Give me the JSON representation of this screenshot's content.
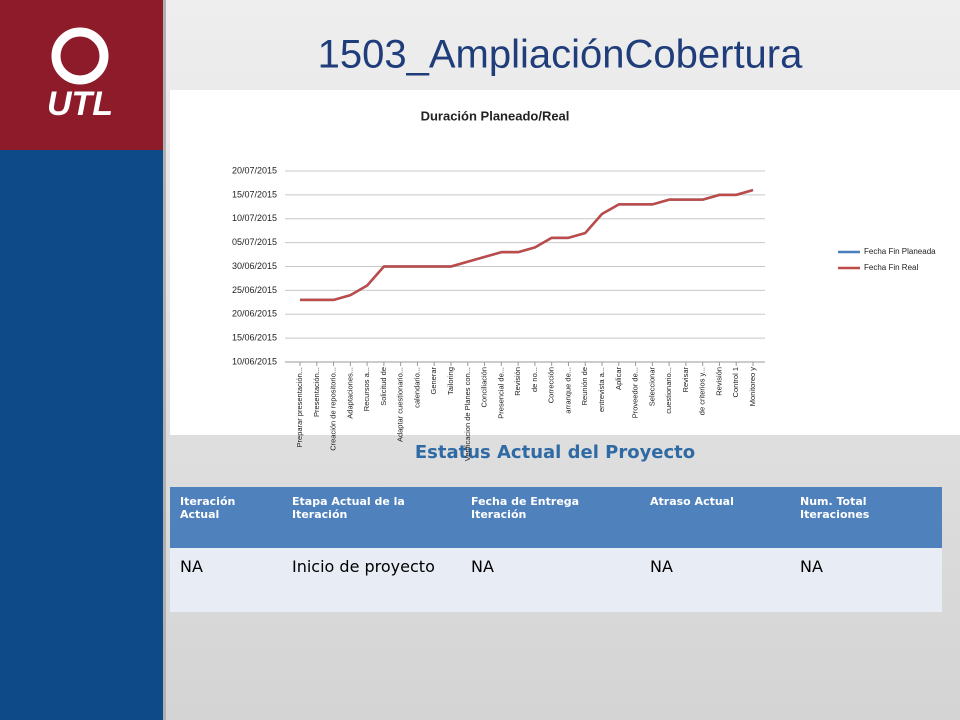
{
  "title": "1503_AmpliaciónCobertura",
  "logo_text": "UTL",
  "chart_data": {
    "type": "line",
    "title": "Duración Planeado/Real",
    "categories": [
      "Preparar presentación...",
      "Presentación...",
      "Creación de repositorio...",
      "Adaptaciones...",
      "Recursos a...",
      "Solicitud de",
      "Adaptar cuestionario...",
      "calendario...",
      "Generar",
      "Tailoring",
      "Verificacion de Planes con...",
      "Conciliación",
      "Presencial de...",
      "Revisión",
      "de no...",
      "Corrección",
      "arranque de...",
      "Reunión de",
      "entrevista a...",
      "Aplicar",
      "Proveedor de...",
      "Seleccionar",
      "cuestionario...",
      "Revisar",
      "de criterios y...",
      "Revisión",
      "Control 1",
      "Monitoreo y"
    ],
    "series": [
      {
        "name": "Fecha Fin Planeada",
        "color": "#4a7ebb",
        "values": [
          "2015-06-23",
          "2015-06-23",
          "2015-06-23",
          "2015-06-24",
          "2015-06-26",
          "2015-06-30",
          "2015-06-30",
          "2015-06-30",
          "2015-06-30",
          "2015-06-30",
          "2015-07-01",
          "2015-07-02",
          "2015-07-03",
          "2015-07-03",
          "2015-07-04",
          "2015-07-06",
          "2015-07-06",
          "2015-07-07",
          "2015-07-11",
          "2015-07-13",
          "2015-07-13",
          "2015-07-13",
          "2015-07-14",
          "2015-07-14",
          "2015-07-14",
          "2015-07-15",
          "2015-07-15",
          "2015-07-16"
        ]
      },
      {
        "name": "Fecha Fin Real",
        "color": "#be4b48",
        "values": [
          "2015-06-23",
          "2015-06-23",
          "2015-06-23",
          "2015-06-24",
          "2015-06-26",
          "2015-06-30",
          "2015-06-30",
          "2015-06-30",
          "2015-06-30",
          "2015-06-30",
          "2015-07-01",
          "2015-07-02",
          "2015-07-03",
          "2015-07-03",
          "2015-07-04",
          "2015-07-06",
          "2015-07-06",
          "2015-07-07",
          "2015-07-11",
          "2015-07-13",
          "2015-07-13",
          "2015-07-13",
          "2015-07-14",
          "2015-07-14",
          "2015-07-14",
          "2015-07-15",
          "2015-07-15",
          "2015-07-16"
        ]
      }
    ],
    "ylim": [
      "2015-06-10",
      "2015-07-20"
    ],
    "yticks": [
      {
        "value": "2015-06-10",
        "label": "10/06/2015"
      },
      {
        "value": "2015-06-15",
        "label": "15/06/2015"
      },
      {
        "value": "2015-06-20",
        "label": "20/06/2015"
      },
      {
        "value": "2015-06-25",
        "label": "25/06/2015"
      },
      {
        "value": "2015-06-30",
        "label": "30/06/2015"
      },
      {
        "value": "2015-07-05",
        "label": "05/07/2015"
      },
      {
        "value": "2015-07-10",
        "label": "10/07/2015"
      },
      {
        "value": "2015-07-15",
        "label": "15/07/2015"
      },
      {
        "value": "2015-07-20",
        "label": "20/07/2015"
      }
    ],
    "grid": true,
    "legend": "right"
  },
  "status": {
    "title": "Estatus Actual del Proyecto",
    "table": {
      "header": [
        "Iteración Actual",
        "Etapa Actual de la Iteración",
        "Fecha de Entrega Iteración",
        "Atraso Actual",
        "Num. Total Iteraciones"
      ],
      "rows": [
        [
          "NA",
          "Inicio de proyecto",
          "NA",
          "NA",
          "NA"
        ]
      ]
    }
  }
}
